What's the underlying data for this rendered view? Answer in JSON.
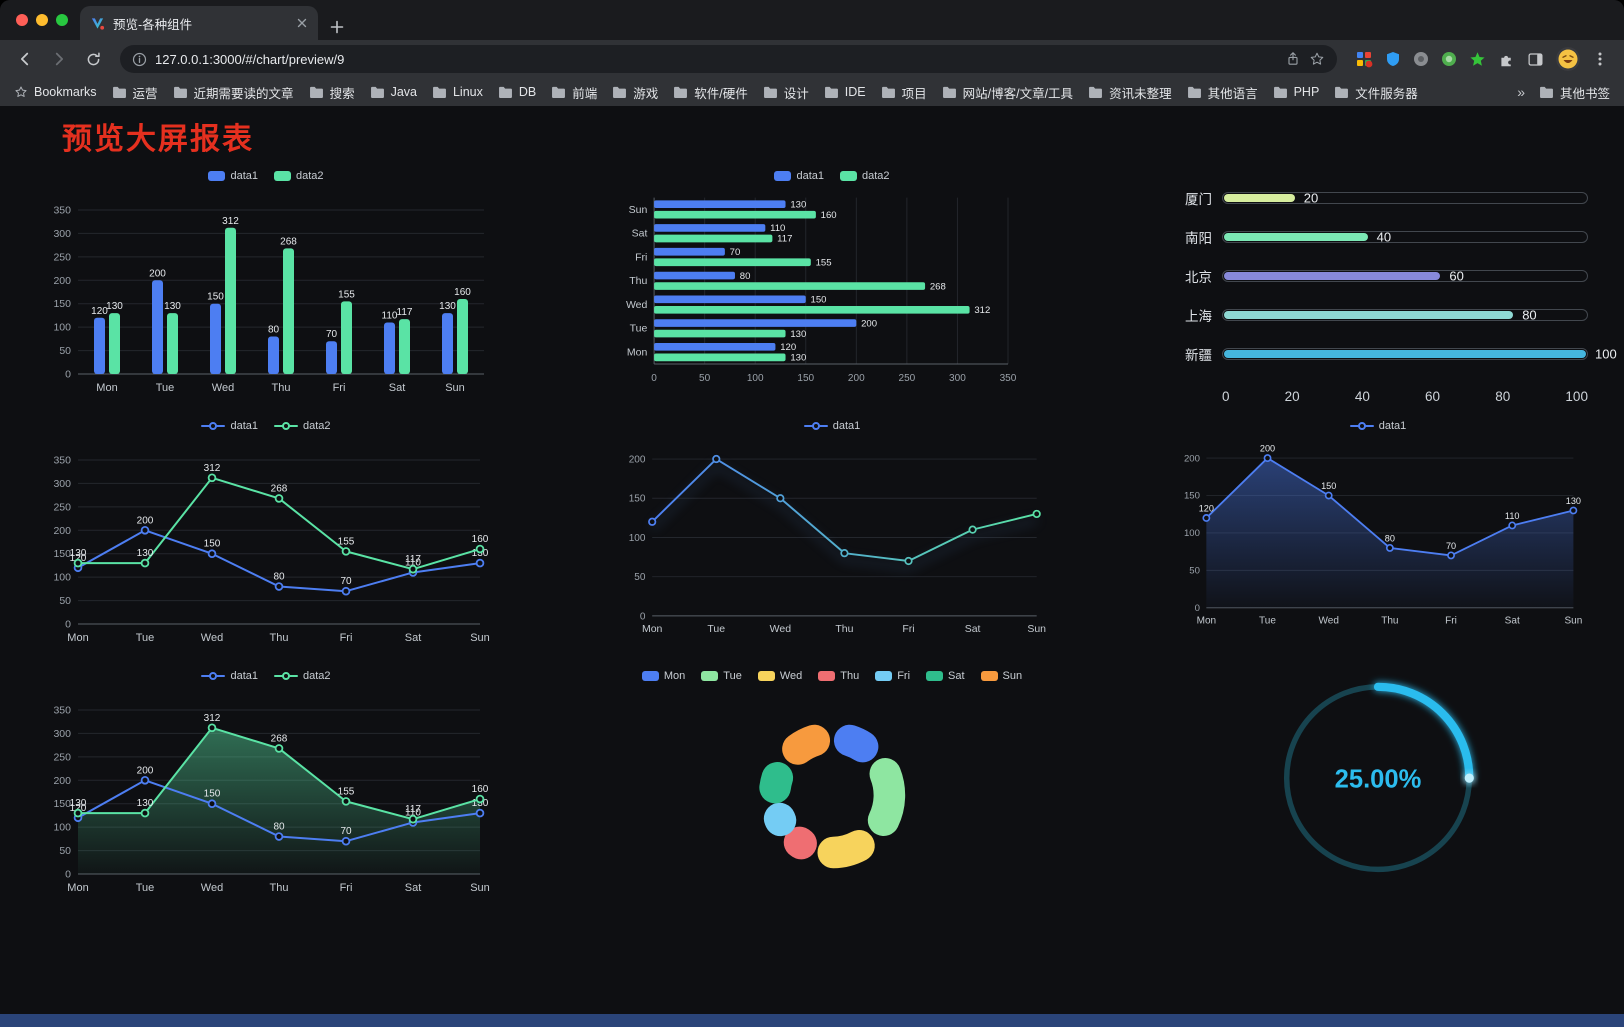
{
  "browser": {
    "tab_title": "预览-各种组件",
    "url": "127.0.0.1:3000/#/chart/preview/9",
    "bookmarks_bar": {
      "bookmarks_label": "Bookmarks",
      "folders": [
        "运营",
        "近期需要读的文章",
        "搜索",
        "Java",
        "Linux",
        "DB",
        "前端",
        "游戏",
        "软件/硬件",
        "设计",
        "IDE",
        "项目",
        "网站/博客/文章/工具",
        "资讯未整理",
        "其他语言",
        "PHP",
        "文件服务器"
      ],
      "overflow_chevron": "»",
      "other_bookmarks": "其他书签"
    }
  },
  "page": {
    "title": "预览大屏报表"
  },
  "chart_data": [
    {
      "id": "bar-grouped",
      "type": "bar",
      "legend": "bar",
      "categories": [
        "Mon",
        "Tue",
        "Wed",
        "Thu",
        "Fri",
        "Sat",
        "Sun"
      ],
      "series": [
        {
          "name": "data1",
          "color": "#4d7ef2",
          "values": [
            120,
            200,
            150,
            80,
            70,
            110,
            130
          ],
          "labels": true
        },
        {
          "name": "data2",
          "color": "#5ae3a5",
          "values": [
            130,
            130,
            312,
            268,
            155,
            117,
            160
          ],
          "labels": true
        }
      ],
      "ylim": [
        0,
        350
      ],
      "yticks": [
        0,
        50,
        100,
        150,
        200,
        250,
        300,
        350
      ]
    },
    {
      "id": "bar-horizontal",
      "type": "hbar",
      "legend": "bar",
      "categories": [
        "Mon",
        "Tue",
        "Wed",
        "Thu",
        "Fri",
        "Sat",
        "Sun"
      ],
      "series": [
        {
          "name": "data1",
          "color": "#4d7ef2",
          "values": [
            120,
            200,
            150,
            80,
            70,
            110,
            130
          ],
          "labels": true
        },
        {
          "name": "data2",
          "color": "#5ae3a5",
          "values": [
            130,
            130,
            312,
            268,
            155,
            117,
            160
          ],
          "labels": true
        }
      ],
      "xlim": [
        0,
        350
      ],
      "xticks": [
        0,
        50,
        100,
        150,
        200,
        250,
        300,
        350
      ]
    },
    {
      "id": "progress-list",
      "type": "progress",
      "max": 100,
      "rows": [
        {
          "label": "厦门",
          "value": 20,
          "color": "#d6ed9e"
        },
        {
          "label": "南阳",
          "value": 40,
          "color": "#7ce8b5"
        },
        {
          "label": "北京",
          "value": 60,
          "color": "#8789da"
        },
        {
          "label": "上海",
          "value": 80,
          "color": "#8fd9d4"
        },
        {
          "label": "新疆",
          "value": 100,
          "color": "#45b6de"
        }
      ],
      "axis": [
        0,
        20,
        40,
        60,
        80,
        100
      ]
    },
    {
      "id": "line-dual",
      "type": "line",
      "legend": "line",
      "categories": [
        "Mon",
        "Tue",
        "Wed",
        "Thu",
        "Fri",
        "Sat",
        "Sun"
      ],
      "series": [
        {
          "name": "data1",
          "color": "#4d7ef2",
          "values": [
            120,
            200,
            150,
            80,
            70,
            110,
            130
          ],
          "labels": true
        },
        {
          "name": "data2",
          "color": "#5ae3a5",
          "values": [
            130,
            130,
            312,
            268,
            155,
            117,
            160
          ],
          "labels": true
        }
      ],
      "ylim": [
        0,
        350
      ],
      "yticks": [
        0,
        50,
        100,
        150,
        200,
        250,
        300,
        350
      ]
    },
    {
      "id": "line-gradient",
      "type": "line",
      "legend": "line",
      "categories": [
        "Mon",
        "Tue",
        "Wed",
        "Thu",
        "Fri",
        "Sat",
        "Sun"
      ],
      "series": [
        {
          "name": "data1",
          "legendColor": "#4d7ef2",
          "gradient": [
            "#4d7ef2",
            "#5ae3a5"
          ],
          "values": [
            120,
            200,
            150,
            80,
            70,
            110,
            130
          ],
          "labels": false,
          "shadow": true
        }
      ],
      "ylim": [
        0,
        200
      ],
      "yticks": [
        0,
        50,
        100,
        150,
        200
      ]
    },
    {
      "id": "area-single",
      "type": "line",
      "legend": "line",
      "categories": [
        "Mon",
        "Tue",
        "Wed",
        "Thu",
        "Fri",
        "Sat",
        "Sun"
      ],
      "series": [
        {
          "name": "data1",
          "color": "#4d7ef2",
          "values": [
            120,
            200,
            150,
            80,
            70,
            110,
            130
          ],
          "labels": true,
          "area": true
        }
      ],
      "ylim": [
        0,
        200
      ],
      "yticks": [
        0,
        50,
        100,
        150,
        200
      ]
    },
    {
      "id": "line-area-dual",
      "type": "line",
      "legend": "line",
      "categories": [
        "Mon",
        "Tue",
        "Wed",
        "Thu",
        "Fri",
        "Sat",
        "Sun"
      ],
      "series": [
        {
          "name": "data1",
          "color": "#4d7ef2",
          "values": [
            120,
            200,
            150,
            80,
            70,
            110,
            130
          ],
          "labels": true
        },
        {
          "name": "data2",
          "color": "#5ae3a5",
          "values": [
            130,
            130,
            312,
            268,
            155,
            117,
            160
          ],
          "labels": true,
          "area": true
        }
      ],
      "ylim": [
        0,
        350
      ],
      "yticks": [
        0,
        50,
        100,
        150,
        200,
        250,
        300,
        350
      ]
    },
    {
      "id": "donut",
      "type": "donut",
      "legend": "swatch",
      "items": [
        {
          "name": "Mon",
          "value": 120,
          "color": "#4d7ef2"
        },
        {
          "name": "Tue",
          "value": 200,
          "color": "#8ee6a1"
        },
        {
          "name": "Wed",
          "value": 150,
          "color": "#f7d35c"
        },
        {
          "name": "Thu",
          "value": 80,
          "color": "#ef6e72"
        },
        {
          "name": "Fri",
          "value": 70,
          "color": "#74ccf4"
        },
        {
          "name": "Sat",
          "value": 110,
          "color": "#2fbd8c"
        },
        {
          "name": "Sun",
          "value": 130,
          "color": "#f79a3e"
        }
      ]
    },
    {
      "id": "gauge",
      "type": "gauge",
      "value": 25,
      "display": "25.00%",
      "color": "#2cbcee",
      "track": "#17434f"
    }
  ]
}
